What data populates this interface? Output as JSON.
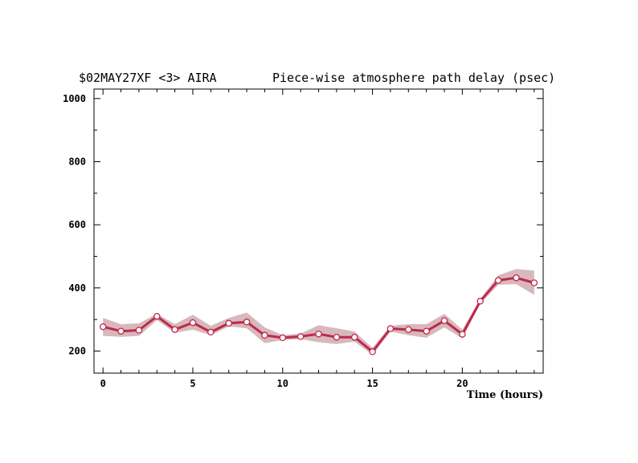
{
  "chart_data": {
    "type": "line",
    "title_left": "$02MAY27XF <3>  AIRA",
    "title_right": "Piece-wise atmosphere path delay (psec)",
    "xlabel": "Time (hours)",
    "ylabel": "",
    "xlim": [
      -0.5,
      24.5
    ],
    "ylim": [
      130,
      1030
    ],
    "xticks": [
      0,
      5,
      10,
      15,
      20
    ],
    "yticks": [
      200,
      400,
      600,
      800,
      1000
    ],
    "grid": false,
    "series": [
      {
        "x": [
          0,
          1,
          2,
          3,
          4,
          5,
          6,
          7,
          8,
          9,
          10,
          11,
          12,
          13,
          14,
          15,
          16,
          17,
          18,
          19,
          20,
          21,
          22,
          23,
          24
        ],
        "values": [
          277,
          263,
          266,
          310,
          268,
          290,
          260,
          288,
          292,
          250,
          242,
          246,
          254,
          244,
          244,
          198,
          271,
          268,
          263,
          296,
          253,
          358,
          424,
          432,
          416
        ],
        "band_upper": [
          305,
          285,
          288,
          318,
          285,
          315,
          280,
          305,
          322,
          275,
          250,
          255,
          282,
          272,
          262,
          210,
          280,
          285,
          285,
          318,
          268,
          365,
          440,
          460,
          455
        ],
        "band_lower": [
          248,
          245,
          248,
          298,
          258,
          268,
          250,
          278,
          272,
          225,
          235,
          238,
          228,
          222,
          230,
          188,
          262,
          250,
          242,
          275,
          240,
          350,
          410,
          412,
          378
        ]
      }
    ],
    "colors": {
      "line": "#c0284a",
      "band": "#d6b8bd",
      "marker_fill": "#ffffff"
    }
  }
}
